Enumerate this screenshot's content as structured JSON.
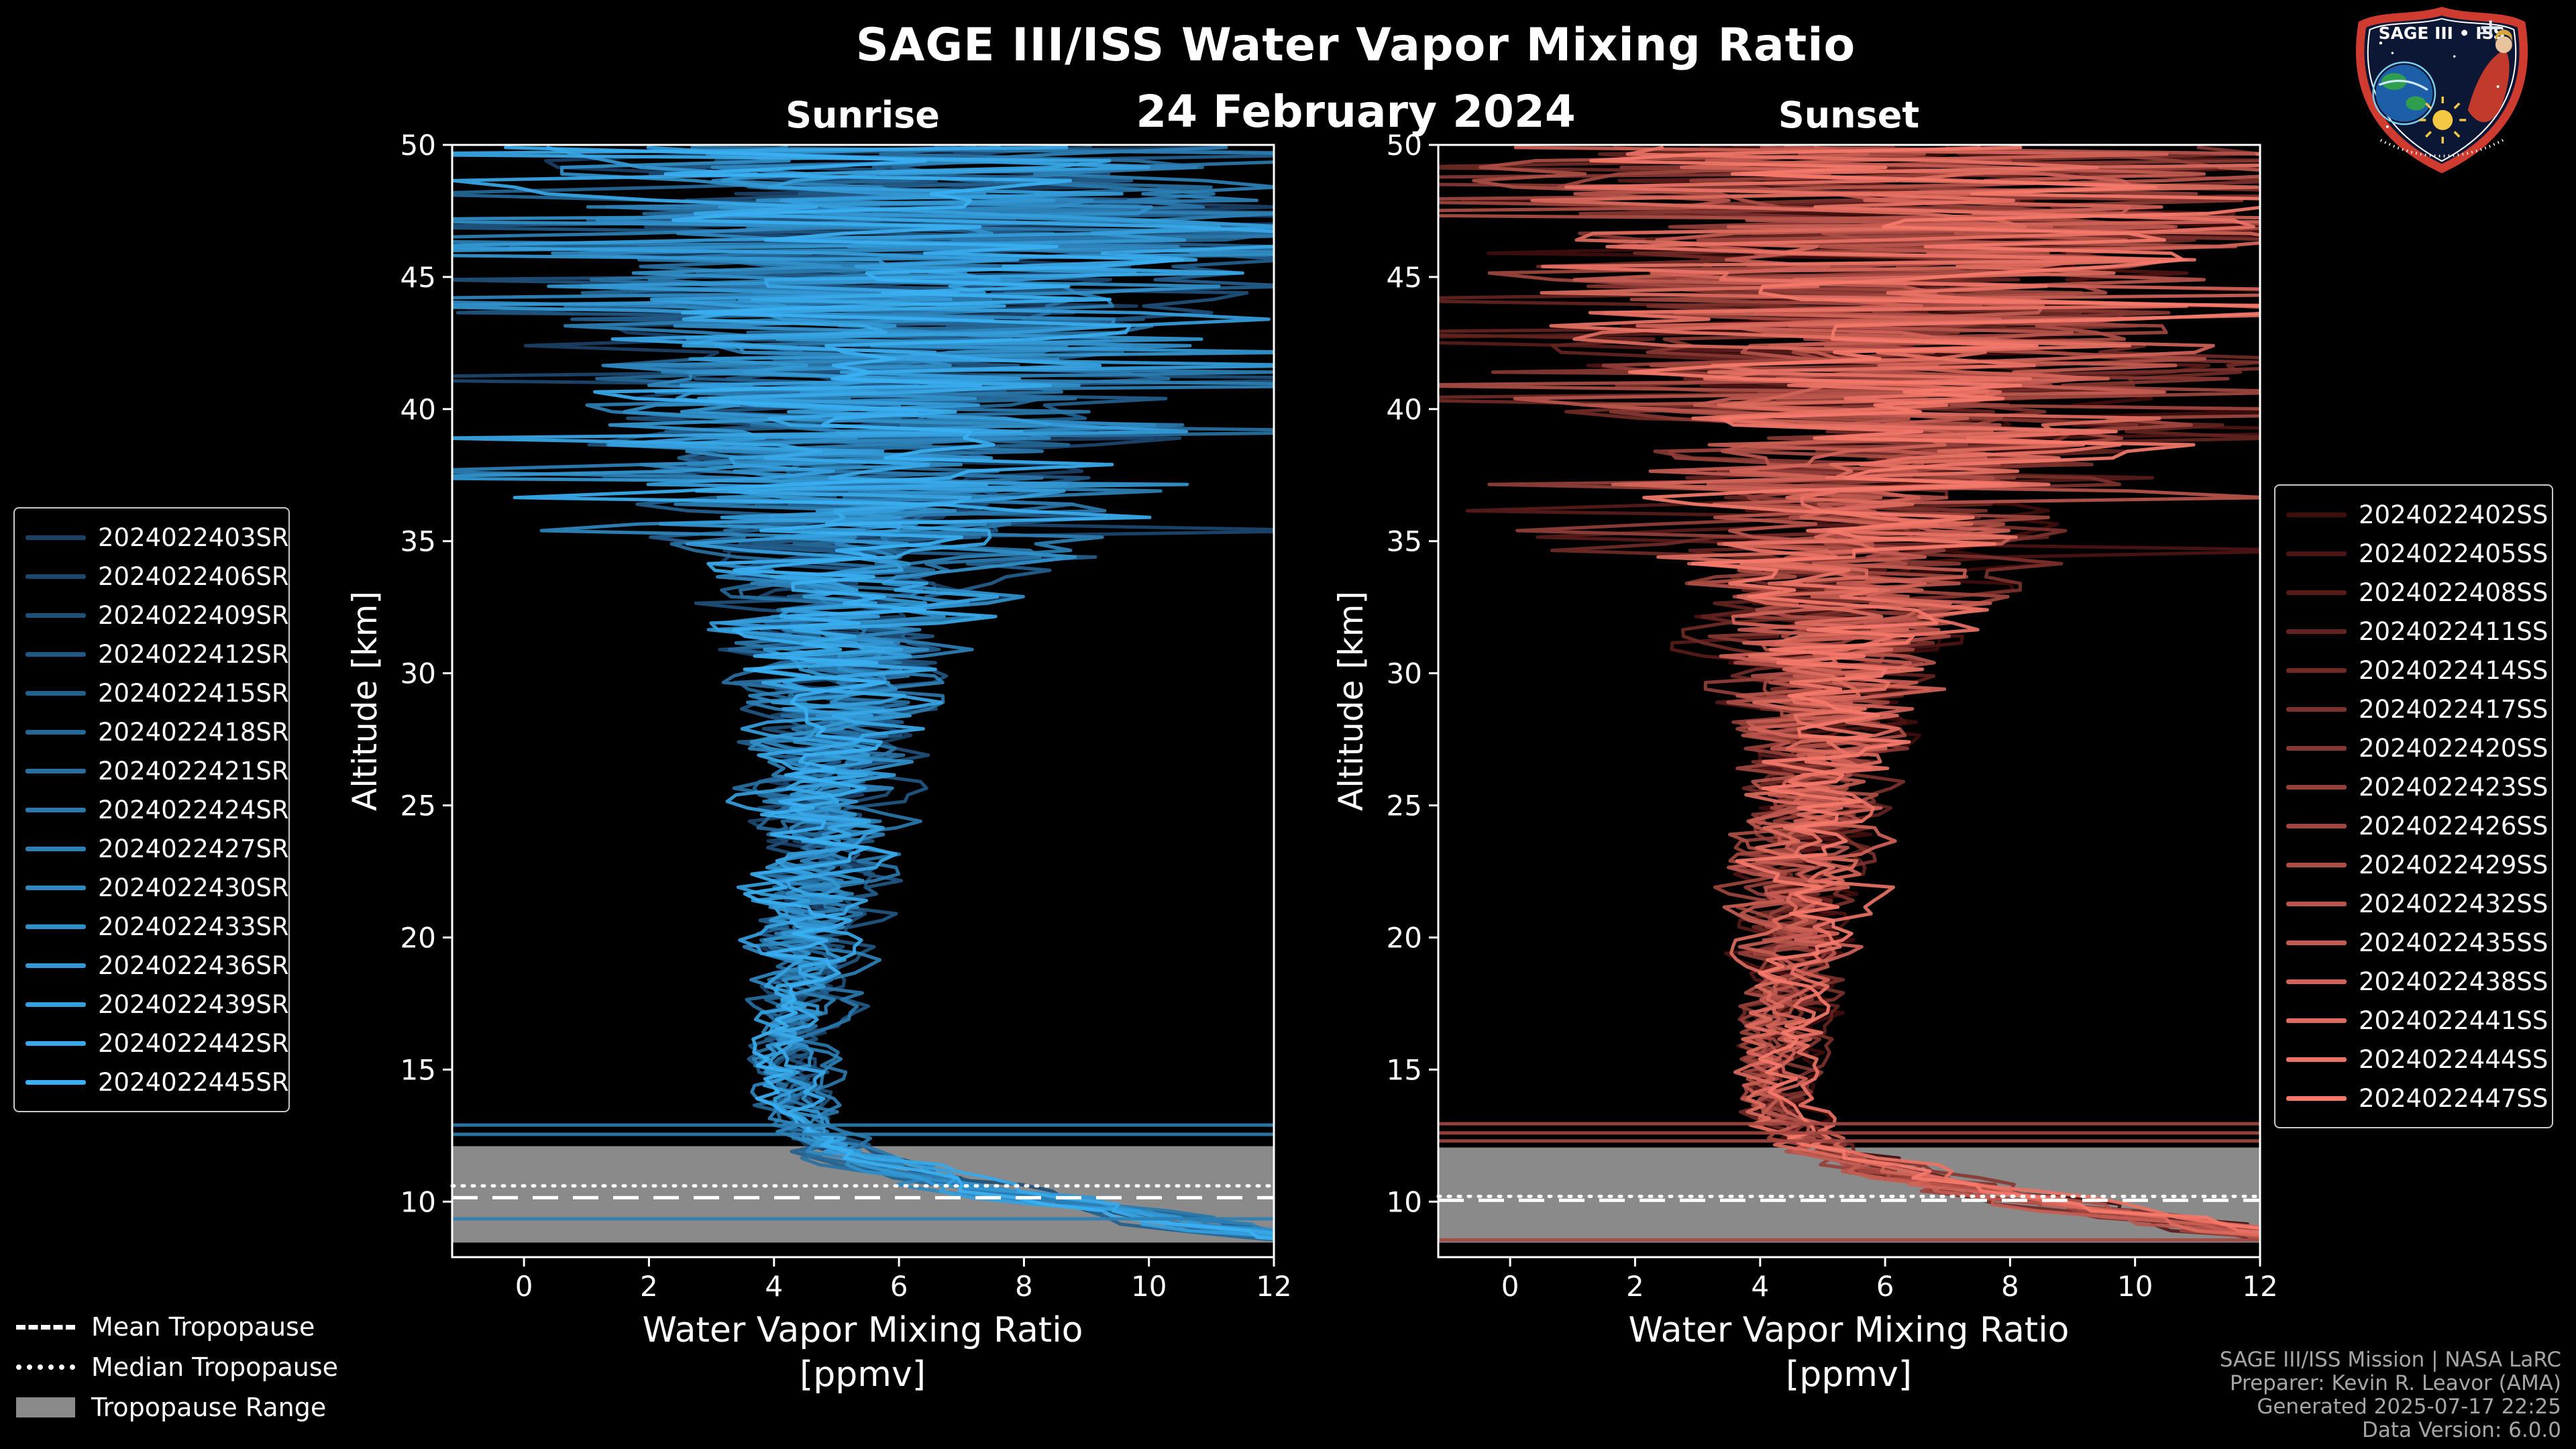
{
  "header": {
    "title": "SAGE III/ISS Water Vapor Mixing Ratio",
    "date": "24 February 2024"
  },
  "chart_data": {
    "type": "line",
    "title": "SAGE III/ISS Water Vapor Mixing Ratio",
    "subtitle": "24 February 2024",
    "xlabel": "Water Vapor Mixing Ratio",
    "xlabel_units": "[ppmv]",
    "ylabel": "Altitude [km]",
    "xlim": [
      -1.15,
      12.0
    ],
    "ylim": [
      7.9,
      50.0
    ],
    "x_ticks": [
      0,
      2,
      4,
      6,
      8,
      10,
      12
    ],
    "y_ticks": [
      10,
      15,
      20,
      25,
      30,
      35,
      40,
      45,
      50
    ],
    "grid": false,
    "background": "#000000",
    "tropopause_band_color": "#8a8a8a",
    "panels": [
      {
        "id": "sunrise",
        "title": "Sunrise",
        "line_color_start": "#1a4066",
        "line_color_end": "#3ab0f2",
        "legend_position": "outside-left",
        "series": [
          "2024022403SR",
          "2024022406SR",
          "2024022409SR",
          "2024022412SR",
          "2024022415SR",
          "2024022418SR",
          "2024022421SR",
          "2024022424SR",
          "2024022427SR",
          "2024022430SR",
          "2024022433SR",
          "2024022436SR",
          "2024022439SR",
          "2024022442SR",
          "2024022445SR"
        ],
        "tropopause": {
          "mean_km": 10.15,
          "median_km": 10.6,
          "range_km": [
            8.45,
            12.1
          ]
        },
        "edge_artifact_altitudes_km": [
          12.9,
          12.55,
          9.35
        ]
      },
      {
        "id": "sunset",
        "title": "Sunset",
        "line_color_start": "#400d0d",
        "line_color_end": "#f5796b",
        "legend_position": "outside-right",
        "series": [
          "2024022402SS",
          "2024022405SS",
          "2024022408SS",
          "2024022411SS",
          "2024022414SS",
          "2024022417SS",
          "2024022420SS",
          "2024022423SS",
          "2024022426SS",
          "2024022429SS",
          "2024022432SS",
          "2024022435SS",
          "2024022438SS",
          "2024022441SS",
          "2024022444SS",
          "2024022447SS"
        ],
        "tropopause": {
          "mean_km": 10.05,
          "median_km": 10.2,
          "range_km": [
            8.45,
            12.05
          ]
        },
        "edge_artifact_altitudes_km": [
          12.95,
          12.6,
          12.3,
          8.55
        ]
      }
    ],
    "mean_profile": {
      "altitude_km": [
        8.4,
        9.0,
        10.0,
        11.0,
        12.0,
        13.0,
        14.0,
        16.0,
        20.0,
        25.0,
        30.0,
        34.0,
        38.0,
        42.0,
        46.0,
        50.0
      ],
      "ppmv": [
        13.5,
        11.2,
        8.6,
        6.3,
        5.0,
        4.45,
        4.3,
        4.35,
        4.6,
        4.85,
        5.1,
        5.4,
        5.8,
        6.1,
        6.3,
        6.4
      ],
      "scatter_ppmv": [
        0.8,
        0.9,
        0.9,
        0.8,
        0.6,
        0.5,
        0.45,
        0.5,
        0.8,
        1.1,
        1.7,
        2.6,
        3.8,
        5.0,
        5.6,
        6.0
      ]
    }
  },
  "tropo_legend": {
    "mean_label": "Mean Tropopause",
    "median_label": "Median Tropopause",
    "range_label": "Tropopause Range"
  },
  "footer": {
    "line1": "SAGE III/ISS Mission | NASA LaRC",
    "line2": "Preparer: Kevin R. Leavor (AMA)",
    "line3": "Generated 2025-07-17 22:25",
    "line4": "Data Version: 6.0.0"
  },
  "logo": {
    "title": "SAGE III • ISS"
  }
}
